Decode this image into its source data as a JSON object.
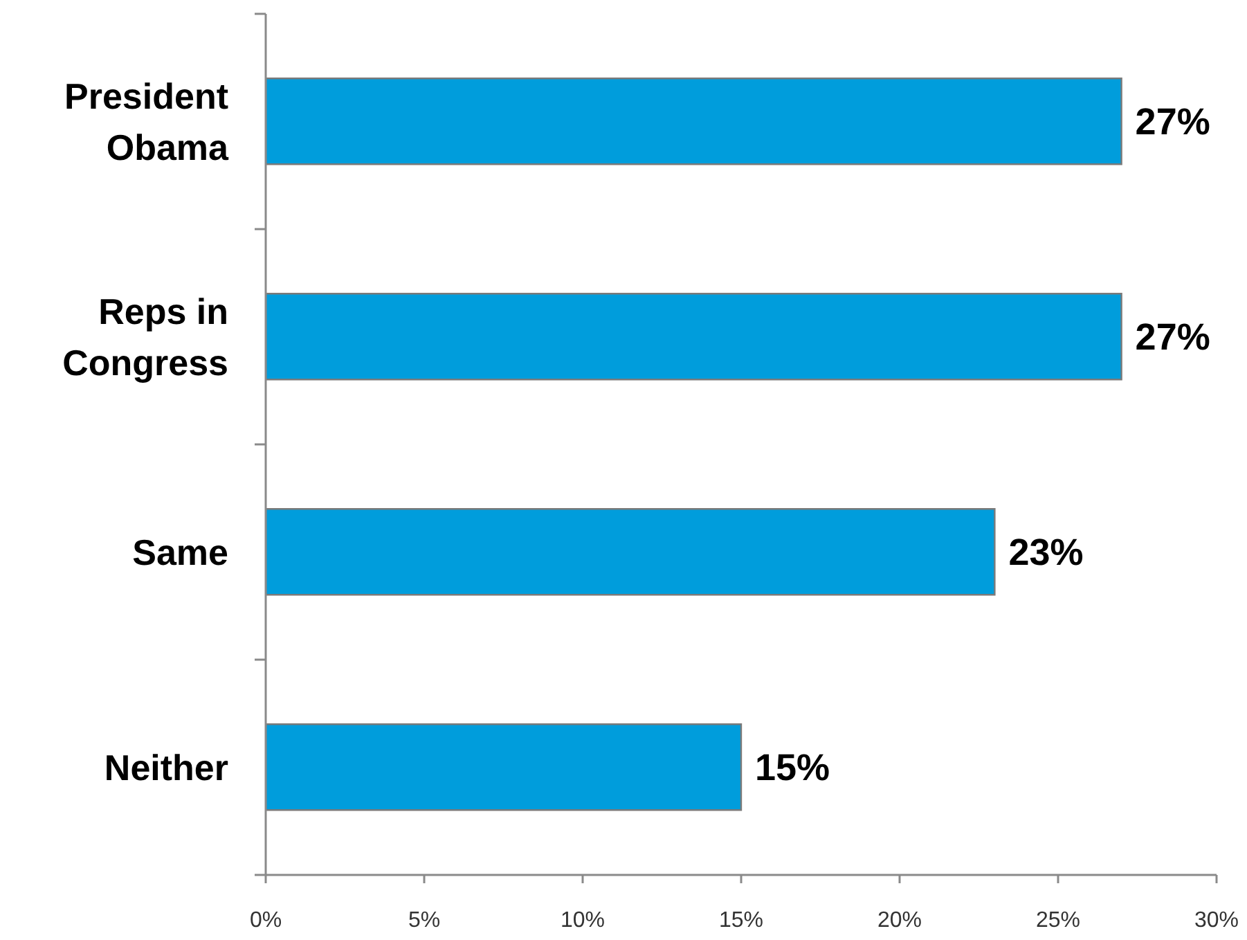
{
  "chart_data": {
    "type": "bar",
    "orientation": "horizontal",
    "categories": [
      "President Obama",
      "Reps in Congress",
      "Same",
      "Neither"
    ],
    "values": [
      27,
      27,
      23,
      15
    ],
    "color": "#009ddc",
    "value_labels": [
      "27%",
      "27%",
      "23%",
      "15%"
    ],
    "xlim": [
      0,
      30
    ],
    "xticks": [
      {
        "value": 0,
        "label": "0%"
      },
      {
        "value": 5,
        "label": "5%"
      },
      {
        "value": 10,
        "label": "10%"
      },
      {
        "value": 15,
        "label": "15%"
      },
      {
        "value": 20,
        "label": "20%"
      },
      {
        "value": 25,
        "label": "25%"
      },
      {
        "value": 30,
        "label": "30%"
      }
    ]
  }
}
